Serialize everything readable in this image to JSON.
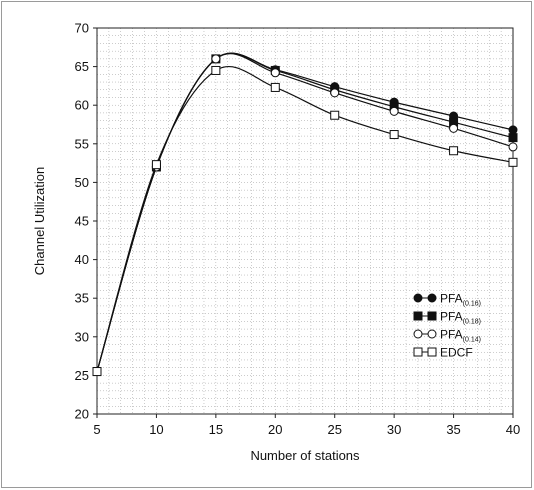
{
  "chart_data": {
    "type": "line",
    "title": "",
    "xlabel": "Number of stations",
    "ylabel": "Channel Utilization",
    "x": [
      5,
      10,
      15,
      20,
      25,
      30,
      35,
      40
    ],
    "xlim": [
      5,
      40
    ],
    "ylim": [
      20,
      70
    ],
    "xticks": [
      "5",
      "10",
      "15",
      "20",
      "25",
      "30",
      "35",
      "40"
    ],
    "yticks": [
      "20",
      "25",
      "30",
      "35",
      "40",
      "45",
      "50",
      "55",
      "60",
      "65",
      "70"
    ],
    "grid": true,
    "legend_position": "lower-right",
    "series": [
      {
        "name": "PFA",
        "subscript": "(0.16)",
        "marker": "filled-circle",
        "values": [
          25.5,
          52.0,
          66.0,
          64.6,
          62.4,
          60.4,
          58.6,
          56.8
        ]
      },
      {
        "name": "PFA",
        "subscript": "(0.18)",
        "marker": "filled-square",
        "values": [
          25.5,
          52.0,
          66.0,
          64.5,
          62.0,
          59.8,
          57.8,
          55.8
        ]
      },
      {
        "name": "PFA",
        "subscript": "(0.14)",
        "marker": "open-circle",
        "values": [
          25.5,
          52.0,
          66.0,
          64.2,
          61.6,
          59.2,
          57.0,
          54.6
        ]
      },
      {
        "name": "EDCF",
        "subscript": "",
        "marker": "open-square",
        "values": [
          25.5,
          52.3,
          64.5,
          62.3,
          58.7,
          56.2,
          54.1,
          52.6
        ]
      }
    ]
  }
}
